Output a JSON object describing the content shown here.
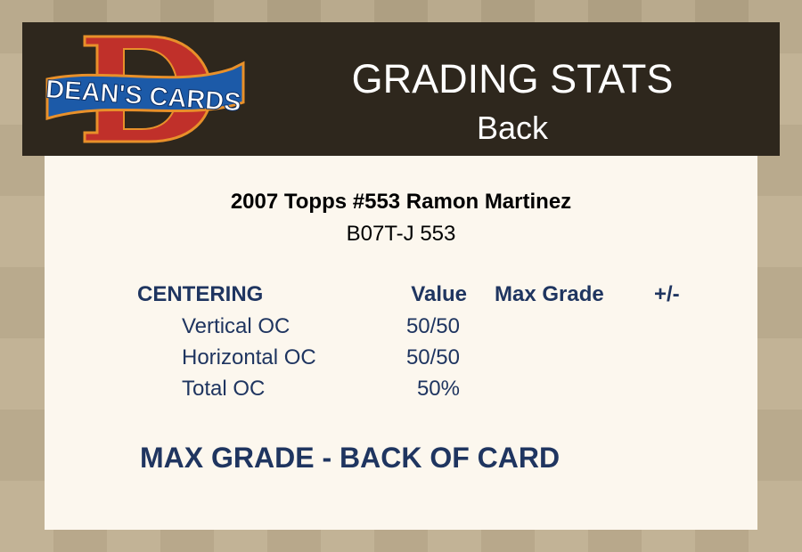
{
  "header": {
    "logo_text": "DEAN'S CARDS",
    "title": "GRADING STATS",
    "subtitle": "Back"
  },
  "card": {
    "name": "2007 Topps #553 Ramon Martinez",
    "code": "B07T-J 553"
  },
  "table": {
    "section": "CENTERING",
    "columns": [
      "Value",
      "Max Grade",
      "+/-"
    ],
    "rows": [
      {
        "label": "Vertical OC",
        "value": "50/50"
      },
      {
        "label": "Horizontal OC",
        "value": "50/50"
      },
      {
        "label": "Total OC",
        "value": "50%"
      }
    ]
  },
  "footer_heading": "MAX GRADE - BACK OF CARD",
  "colors": {
    "header_bg": "#2e271d",
    "panel_bg": "#fcf7ee",
    "text_navy": "#1f3560",
    "logo_red": "#c0302a",
    "logo_blue": "#1c5aa8"
  }
}
